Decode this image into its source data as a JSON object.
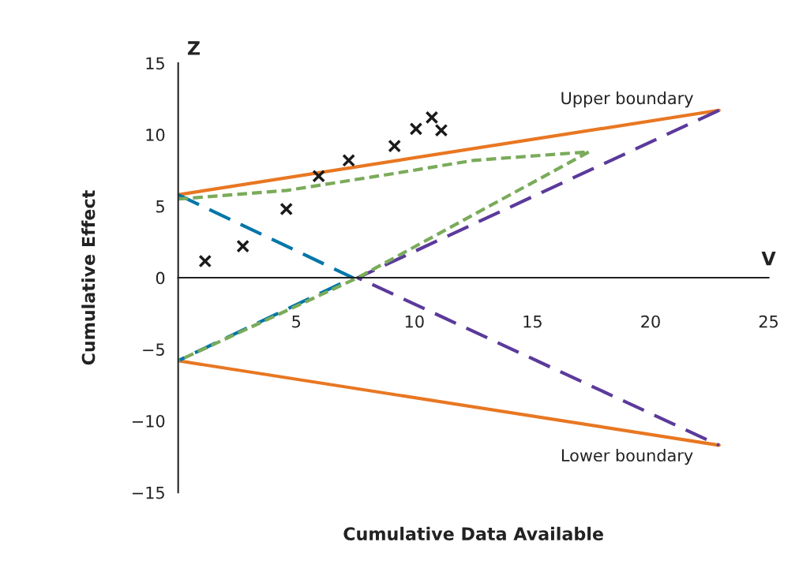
{
  "chart_data": {
    "type": "line",
    "xlabel": "Cumulative Data Available",
    "ylabel": "Cumulative Effect",
    "xlim": [
      0,
      25
    ],
    "ylim": [
      -15,
      15
    ],
    "xticks": [
      5,
      10,
      15,
      20,
      25
    ],
    "yticks": [
      {
        "value": -15,
        "label": "−15"
      },
      {
        "value": -10,
        "label": "−10"
      },
      {
        "value": -5,
        "label": "−5"
      },
      0,
      5,
      10,
      15
    ],
    "grid": false,
    "legend": false,
    "annotations": [
      "Z",
      "V",
      "Upper boundary",
      "Lower boundary"
    ],
    "series": [
      {
        "color": "#e87722",
        "line_style": "solid",
        "x": [
          0,
          22.9
        ],
        "values": [
          5.8,
          11.7
        ]
      },
      {
        "color": "#e87722",
        "line_style": "solid",
        "x": [
          0,
          22.9
        ],
        "values": [
          -5.8,
          -11.7
        ]
      },
      {
        "color": "#0076a8",
        "line_style": "dashed",
        "x": [
          0,
          7.4,
          0
        ],
        "values": [
          5.8,
          0,
          -5.8
        ]
      },
      {
        "color": "#5b3a9b",
        "line_style": "dashed",
        "x": [
          22.9,
          7.6,
          22.9
        ],
        "values": [
          11.7,
          0,
          -11.7
        ]
      },
      {
        "color": "#7aab5a",
        "line_style": "dotted",
        "x": [
          0,
          4.6,
          9.2,
          12.5,
          17.4,
          7.6,
          0
        ],
        "values": [
          5.5,
          6.1,
          7.3,
          8.2,
          8.8,
          0,
          -5.8
        ]
      },
      {
        "type": "scatter",
        "color": "#1a1a1a",
        "marker": "cross",
        "x": [
          1.14,
          2.74,
          4.58,
          5.95,
          7.22,
          9.16,
          10.07,
          10.74,
          11.14
        ],
        "values": [
          1.16,
          2.2,
          4.8,
          7.1,
          8.2,
          9.2,
          10.4,
          11.2,
          10.3
        ]
      }
    ]
  }
}
